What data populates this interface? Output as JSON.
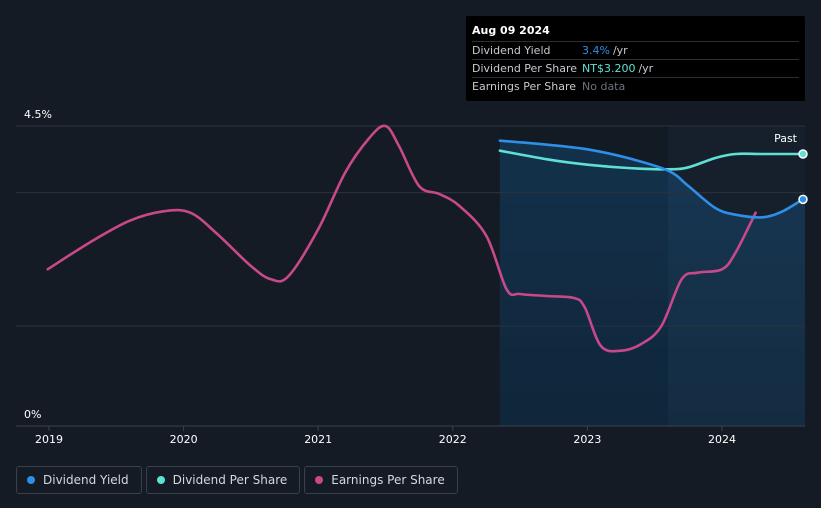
{
  "chart_data": {
    "type": "line",
    "x_ticks": [
      "2019",
      "2020",
      "2021",
      "2022",
      "2023",
      "2024"
    ],
    "y_ticks": [
      "4.5%",
      "0%"
    ],
    "ylim": [
      0,
      4.5
    ],
    "past_label": "Past",
    "grid": true,
    "colors": {
      "dividend_yield": "#2e8fe6",
      "dividend_per_share": "#5fe0d5",
      "earnings_per_share": "#c8498a",
      "forecast_fill": "#16456b"
    },
    "series": [
      {
        "name": "Dividend Yield",
        "key": "dividend_yield",
        "points": [
          [
            2022.35,
            4.28
          ],
          [
            2022.7,
            4.22
          ],
          [
            2023.0,
            4.15
          ],
          [
            2023.3,
            4.02
          ],
          [
            2023.6,
            3.83
          ],
          [
            2023.75,
            3.6
          ],
          [
            2023.95,
            3.27
          ],
          [
            2024.1,
            3.17
          ],
          [
            2024.3,
            3.13
          ],
          [
            2024.45,
            3.22
          ],
          [
            2024.6,
            3.4
          ]
        ]
      },
      {
        "name": "Dividend Per Share",
        "key": "dividend_per_share",
        "points": [
          [
            2022.35,
            4.13
          ],
          [
            2022.7,
            4.0
          ],
          [
            2023.0,
            3.92
          ],
          [
            2023.3,
            3.87
          ],
          [
            2023.6,
            3.85
          ],
          [
            2023.75,
            3.88
          ],
          [
            2023.95,
            4.02
          ],
          [
            2024.1,
            4.08
          ],
          [
            2024.3,
            4.08
          ],
          [
            2024.6,
            4.08
          ]
        ]
      },
      {
        "name": "Earnings Per Share",
        "key": "earnings_per_share",
        "points": [
          [
            2018.99,
            2.35
          ],
          [
            2019.3,
            2.75
          ],
          [
            2019.6,
            3.08
          ],
          [
            2019.85,
            3.22
          ],
          [
            2020.05,
            3.2
          ],
          [
            2020.25,
            2.88
          ],
          [
            2020.5,
            2.4
          ],
          [
            2020.65,
            2.2
          ],
          [
            2020.78,
            2.25
          ],
          [
            2021.0,
            2.95
          ],
          [
            2021.2,
            3.8
          ],
          [
            2021.38,
            4.32
          ],
          [
            2021.5,
            4.5
          ],
          [
            2021.6,
            4.2
          ],
          [
            2021.75,
            3.6
          ],
          [
            2021.9,
            3.48
          ],
          [
            2022.05,
            3.3
          ],
          [
            2022.25,
            2.85
          ],
          [
            2022.4,
            2.05
          ],
          [
            2022.5,
            1.98
          ],
          [
            2022.7,
            1.95
          ],
          [
            2022.9,
            1.92
          ],
          [
            2022.98,
            1.78
          ],
          [
            2023.1,
            1.2
          ],
          [
            2023.25,
            1.13
          ],
          [
            2023.4,
            1.23
          ],
          [
            2023.55,
            1.5
          ],
          [
            2023.7,
            2.2
          ],
          [
            2023.82,
            2.3
          ],
          [
            2024.0,
            2.35
          ],
          [
            2024.1,
            2.6
          ],
          [
            2024.25,
            3.2
          ]
        ]
      }
    ],
    "tooltip": {
      "date": "Aug 09 2024",
      "rows": [
        {
          "label": "Dividend Yield",
          "value": "3.4%",
          "unit": "/yr",
          "color": "#2e8fe6"
        },
        {
          "label": "Dividend Per Share",
          "value": "NT$3.200",
          "unit": "/yr",
          "color": "#5fe0d5"
        },
        {
          "label": "Earnings Per Share",
          "value": "No data",
          "unit": "",
          "color": "#6c727a"
        }
      ]
    },
    "legend": [
      {
        "label": "Dividend Yield",
        "color": "#2e8fe6"
      },
      {
        "label": "Dividend Per Share",
        "color": "#5fe0d5"
      },
      {
        "label": "Earnings Per Share",
        "color": "#c8498a"
      }
    ]
  }
}
